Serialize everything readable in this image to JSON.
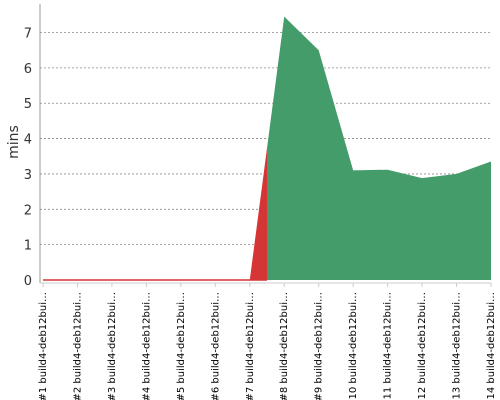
{
  "chart_data": {
    "type": "area",
    "title": "",
    "xlabel": "",
    "ylabel": "mins",
    "ylim": [
      0,
      7.75
    ],
    "grid": true,
    "yticks": [
      0,
      1,
      2,
      3,
      4,
      5,
      6,
      7
    ],
    "categories": [
      "#1 build4-deb12bui…",
      "#2 build4-deb12bui…",
      "#3 build4-deb12bui…",
      "#4 build4-deb12bui…",
      "#5 build4-deb12bui…",
      "#6 build4-deb12bui…",
      "#7 build4-deb12bui…",
      "#8 build4-deb12bui…",
      "#9 build4-deb12bui…",
      "#10 build4-deb12bui…",
      "#11 build4-deb12bui…",
      "#12 build4-deb12bui…",
      "#13 build4-deb12bui…",
      "#14 build4-deb12bui…"
    ],
    "values": [
      0,
      0,
      0,
      0,
      0,
      0,
      0,
      7.45,
      6.5,
      3.1,
      3.12,
      2.88,
      3.0,
      3.35
    ],
    "status": [
      "failure",
      "failure",
      "failure",
      "failure",
      "failure",
      "failure",
      "failure",
      "success",
      "success",
      "success",
      "success",
      "success",
      "success",
      "success"
    ],
    "colors": {
      "failure": "#d63536",
      "success": "#439c6a",
      "grid": "#888888",
      "axis": "#999999"
    }
  }
}
